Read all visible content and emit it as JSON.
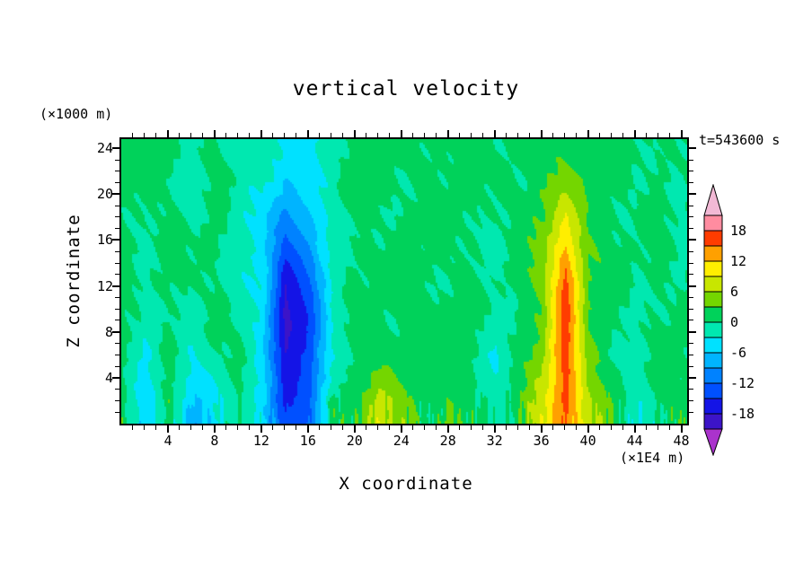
{
  "chart_data": {
    "type": "heatmap",
    "title": "vertical velocity",
    "timestamp_label": "t=543600 s",
    "xlabel": "X coordinate",
    "x_unit_label": "(×1E4 m)",
    "ylabel": "Z coordinate",
    "y_unit_label": "(×1000 m)",
    "xlim": [
      0,
      48.5
    ],
    "zlim": [
      0,
      24.8
    ],
    "x_major_ticks": [
      4,
      8,
      12,
      16,
      20,
      24,
      28,
      32,
      36,
      40,
      44,
      48
    ],
    "z_major_ticks": [
      4,
      8,
      12,
      16,
      20,
      24
    ],
    "minor_tick_step": 1,
    "major_tick_step": 4,
    "grid": {
      "x": [
        0,
        2,
        4,
        6,
        8,
        10,
        12,
        14,
        16,
        18,
        20,
        22,
        24,
        26,
        28,
        30,
        32,
        34,
        36,
        38,
        40,
        42,
        44,
        46,
        48,
        50
      ],
      "z": [
        0,
        2,
        4,
        6,
        8,
        10,
        12,
        14,
        16,
        18,
        20,
        22,
        24
      ],
      "values": [
        [
          1,
          -7,
          2,
          -8,
          -4,
          1,
          -6,
          -14,
          -12,
          1,
          2,
          8,
          5,
          1,
          4,
          1,
          -2,
          2,
          9,
          15,
          8,
          2,
          -3,
          1,
          2,
          1
        ],
        [
          1,
          -6,
          2,
          -7,
          -3,
          1,
          -5,
          -16,
          -13,
          1,
          2,
          7,
          4,
          1,
          3,
          1,
          -2,
          2,
          8,
          16,
          7,
          2,
          -3,
          1,
          2,
          1
        ],
        [
          1,
          -4,
          1,
          -5,
          -2,
          1,
          -4,
          -17,
          -14,
          -2,
          2,
          4,
          2,
          1,
          2,
          1,
          -3,
          1,
          6,
          17,
          5,
          2,
          -2,
          1,
          1,
          1
        ],
        [
          1,
          -3,
          1,
          -3,
          -1,
          1,
          -4,
          -18,
          -14,
          -3,
          1,
          2,
          1,
          1,
          1,
          1,
          -3,
          1,
          5,
          17,
          4,
          1,
          -2,
          1,
          1,
          1
        ],
        [
          1,
          -2,
          1,
          -2,
          1,
          0,
          -4,
          -19,
          -15,
          -3,
          1,
          1,
          1,
          1,
          1,
          1,
          -2,
          1,
          4,
          17,
          3,
          1,
          -1,
          1,
          1,
          1
        ],
        [
          1,
          -2,
          1,
          -1,
          1,
          -1,
          -4,
          -19,
          -14,
          -3,
          1,
          1,
          1,
          1,
          1,
          1,
          -2,
          1,
          4,
          17,
          3,
          1,
          -1,
          1,
          0,
          1
        ],
        [
          1,
          -1,
          1,
          0,
          1,
          -2,
          -4,
          -18,
          -13,
          -2,
          1,
          1,
          1,
          0,
          1,
          1,
          -1,
          1,
          4,
          17,
          3,
          1,
          0,
          1,
          0,
          1
        ],
        [
          1,
          -1,
          1,
          0,
          1,
          -2,
          -4,
          -16,
          -11,
          -2,
          1,
          1,
          0,
          1,
          1,
          0,
          -1,
          1,
          4,
          15,
          3,
          1,
          0,
          1,
          -1,
          1
        ],
        [
          1,
          0,
          1,
          0,
          1,
          -2,
          -4,
          -13,
          -9,
          -2,
          1,
          0,
          1,
          1,
          0,
          1,
          -1,
          1,
          4,
          12,
          3,
          1,
          0,
          1,
          -1,
          1
        ],
        [
          1,
          0,
          1,
          -1,
          1,
          -2,
          -4,
          -10,
          -7,
          -2,
          1,
          0,
          1,
          1,
          0,
          1,
          0,
          1,
          3,
          9,
          3,
          1,
          0,
          1,
          -1,
          1
        ],
        [
          1,
          0,
          1,
          -2,
          1,
          -2,
          -3,
          -7,
          -5,
          -1,
          1,
          1,
          1,
          0,
          1,
          1,
          0,
          1,
          3,
          6,
          2,
          1,
          0,
          1,
          -1,
          1
        ],
        [
          1,
          1,
          1,
          -2,
          1,
          -1,
          -2,
          -5,
          -4,
          -1,
          1,
          1,
          0,
          1,
          1,
          1,
          0,
          1,
          2,
          4,
          2,
          1,
          0,
          1,
          0,
          1
        ],
        [
          1,
          1,
          1,
          -1,
          1,
          -1,
          -2,
          -4,
          -4,
          -1,
          1,
          1,
          1,
          1,
          1,
          1,
          0,
          1,
          1,
          2,
          1,
          1,
          0,
          1,
          0,
          1
        ]
      ]
    },
    "colorbar": {
      "levels_min": -21,
      "levels_max": 21,
      "level_step": 3,
      "tick_labels": [
        "18",
        "12",
        "6",
        "0",
        "-6",
        "-12",
        "-18"
      ],
      "band_colors_low_to_high": [
        "#3c14c8",
        "#1414e6",
        "#0050ff",
        "#0082ff",
        "#00b4ff",
        "#00e1ff",
        "#00e8b0",
        "#00d25a",
        "#74d600",
        "#c8e600",
        "#ffee00",
        "#ffa000",
        "#ff3c00",
        "#ff8ca0"
      ],
      "arrow_low_color": "#aa33cc",
      "arrow_high_color": "#f2b9d5"
    }
  }
}
